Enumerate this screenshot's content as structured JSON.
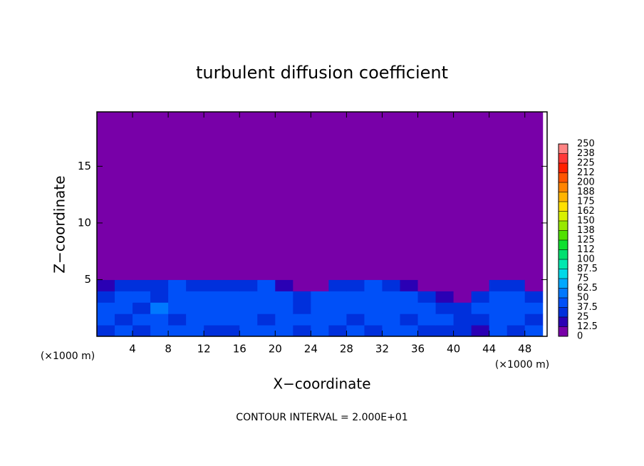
{
  "chart_data": {
    "type": "heatmap",
    "title": "turbulent diffusion coefficient",
    "xlabel": "X−coordinate",
    "ylabel": "Z−coordinate",
    "x_unit_label": "(×1000 m)",
    "y_unit_label": "(×1000 m)",
    "annotation": "CONTOUR INTERVAL = 2.000E+01",
    "xlim": [
      0,
      50.5
    ],
    "ylim": [
      0,
      19.8
    ],
    "xticks": [
      4,
      8,
      12,
      16,
      20,
      24,
      28,
      32,
      36,
      40,
      44,
      48
    ],
    "yticks": [
      5,
      10,
      15
    ],
    "x_edges": [
      0,
      2,
      4,
      6,
      8,
      10,
      12,
      14,
      16,
      18,
      20,
      22,
      24,
      26,
      28,
      30,
      32,
      34,
      36,
      38,
      40,
      42,
      44,
      46,
      48,
      50
    ],
    "z_edges": [
      0,
      1,
      2,
      3,
      4,
      5,
      19.8
    ],
    "values": [
      [
        35,
        40,
        30,
        45,
        38,
        42,
        30,
        35,
        40,
        45,
        38,
        30,
        42,
        35,
        40,
        30,
        38,
        45,
        35,
        30,
        25,
        20,
        40,
        35,
        38
      ],
      [
        40,
        35,
        45,
        40,
        30,
        48,
        42,
        38,
        45,
        35,
        40,
        42,
        38,
        45,
        30,
        40,
        42,
        35,
        40,
        38,
        30,
        25,
        45,
        40,
        35
      ],
      [
        38,
        42,
        35,
        50,
        40,
        38,
        45,
        40,
        38,
        42,
        45,
        35,
        40,
        38,
        42,
        45,
        40,
        38,
        42,
        35,
        30,
        40,
        38,
        42,
        40
      ],
      [
        30,
        38,
        40,
        35,
        45,
        42,
        38,
        45,
        42,
        40,
        38,
        35,
        42,
        40,
        38,
        45,
        42,
        40,
        35,
        20,
        10,
        30,
        40,
        38,
        35
      ],
      [
        20,
        30,
        35,
        30,
        38,
        30,
        25,
        30,
        35,
        38,
        20,
        5,
        10,
        30,
        35,
        38,
        30,
        20,
        5,
        0,
        0,
        10,
        35,
        30,
        10
      ],
      [
        0,
        0,
        0,
        0,
        0,
        0,
        0,
        0,
        0,
        0,
        0,
        0,
        0,
        0,
        0,
        0,
        0,
        0,
        0,
        0,
        0,
        0,
        0,
        0,
        0
      ]
    ],
    "clim": [
      0,
      250
    ],
    "cticks": [
      0,
      12.5,
      25,
      37.5,
      50,
      62.5,
      75,
      87.5,
      100,
      {
        "value": 112.5,
        "label": "112"
      },
      125,
      {
        "value": 137.5,
        "label": "138"
      },
      150,
      {
        "value": 162.5,
        "label": "162"
      },
      175,
      {
        "value": 187.5,
        "label": "188"
      },
      200,
      {
        "value": 212.5,
        "label": "212"
      },
      225,
      {
        "value": 237.5,
        "label": "238"
      },
      250
    ],
    "colors": [
      "#7800a8",
      "#2a00b4",
      "#0030dc",
      "#0050f8",
      "#0078ff",
      "#00a8ff",
      "#00d8e8",
      "#00e8b0",
      "#00e070",
      "#10e030",
      "#50e000",
      "#98e800",
      "#d8f000",
      "#ffe000",
      "#ffb400",
      "#ff8400",
      "#ff5400",
      "#ff2000",
      "#ff3838",
      "#ff8484"
    ]
  }
}
